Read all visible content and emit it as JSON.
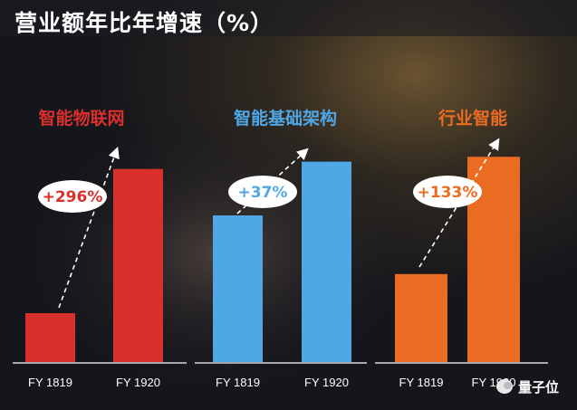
{
  "title": "营业额年比年增速（%）",
  "watermark": "量子位",
  "colors": {
    "iot": "#d9302b",
    "infra": "#4fa7e6",
    "industry": "#ea6b22",
    "label_bg": "#ffffff",
    "axis": "#d8d8d8"
  },
  "chart_data": [
    {
      "type": "bar",
      "title": "智能物联网",
      "categories": [
        "FY 1819",
        "FY 1920"
      ],
      "values": [
        20,
        79
      ],
      "growth_label": "+296%",
      "color": "#d9302b"
    },
    {
      "type": "bar",
      "title": "智能基础架构",
      "categories": [
        "FY 1819",
        "FY 1920"
      ],
      "values": [
        60,
        82
      ],
      "growth_label": "+37%",
      "color": "#4fa7e6"
    },
    {
      "type": "bar",
      "title": "行业智能",
      "categories": [
        "FY 1819",
        "FY 1920"
      ],
      "values": [
        36,
        84
      ],
      "growth_label": "+133%",
      "color": "#ea6b22"
    }
  ]
}
